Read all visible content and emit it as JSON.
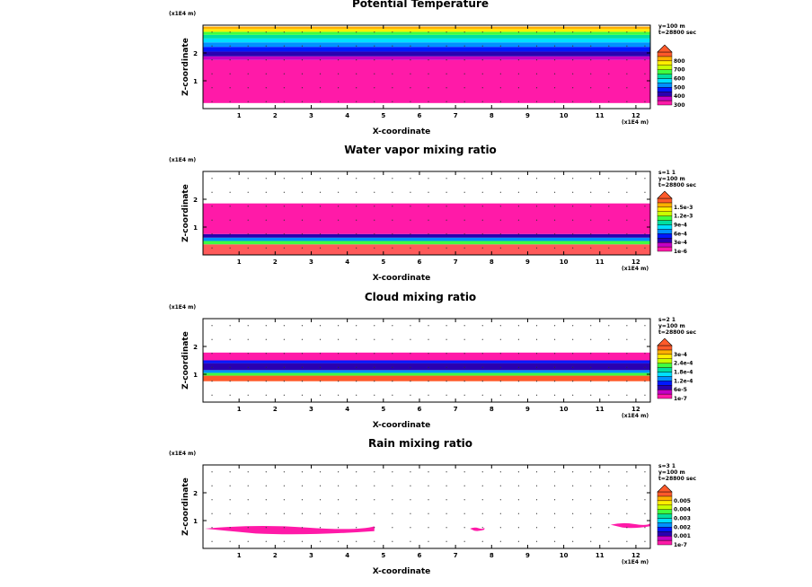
{
  "chart_data": [
    {
      "type": "heatmap",
      "title": "Potential Temperature",
      "xlabel": "X-coordinate",
      "ylabel": "Z-coordinate",
      "x_unit": "(x1E4 m)",
      "y_unit": "(x1E4 m)",
      "xlim": [
        0,
        12.4
      ],
      "ylim": [
        0,
        3.0
      ],
      "x_ticks": [
        "1",
        "2",
        "3",
        "4",
        "5",
        "6",
        "7",
        "8",
        "9",
        "10",
        "11",
        "12"
      ],
      "y_ticks": [
        "1",
        "2"
      ],
      "info": [
        "y=100 m",
        "t=28800 sec"
      ],
      "legend_levels": [
        "300",
        "400",
        "500",
        "600",
        "700",
        "800"
      ],
      "colorbar": [
        "#ff1aa8",
        "#c400c4",
        "#2a00b0",
        "#0018ff",
        "#0090ff",
        "#00e0ff",
        "#00e0a0",
        "#40ff40",
        "#c8ff00",
        "#ffee00",
        "#ffb000",
        "#ff5a2a"
      ],
      "bands": [
        {
          "z0": 0.2,
          "z1": 1.75,
          "color": "#ff1aa8"
        },
        {
          "z0": 1.75,
          "z1": 1.88,
          "color": "#c400c4"
        },
        {
          "z0": 1.88,
          "z1": 2.05,
          "color": "#2a00b0"
        },
        {
          "z0": 2.05,
          "z1": 2.22,
          "color": "#0018ff"
        },
        {
          "z0": 2.22,
          "z1": 2.38,
          "color": "#0090ff"
        },
        {
          "z0": 2.38,
          "z1": 2.52,
          "color": "#00e0ff"
        },
        {
          "z0": 2.52,
          "z1": 2.65,
          "color": "#00e0a0"
        },
        {
          "z0": 2.65,
          "z1": 2.76,
          "color": "#40ff40"
        },
        {
          "z0": 2.76,
          "z1": 2.86,
          "color": "#ffee00"
        },
        {
          "z0": 2.86,
          "z1": 2.95,
          "color": "#ffb000"
        }
      ]
    },
    {
      "type": "heatmap",
      "title": "Water vapor mixing ratio",
      "xlabel": "X-coordinate",
      "ylabel": "Z-coordinate",
      "x_unit": "(x1E4 m)",
      "y_unit": "(x1E4 m)",
      "xlim": [
        0,
        12.4
      ],
      "ylim": [
        0,
        3.0
      ],
      "x_ticks": [
        "1",
        "2",
        "3",
        "4",
        "5",
        "6",
        "7",
        "8",
        "9",
        "10",
        "11",
        "12"
      ],
      "y_ticks": [
        "1",
        "2"
      ],
      "info": [
        "s=1 1",
        "y=100 m",
        "t=28800 sec"
      ],
      "legend_levels": [
        "1e-6",
        "3e-4",
        "6e-4",
        "9e-4",
        "1.2e-3",
        "1.5e-3"
      ],
      "colorbar": [
        "#ff1aa8",
        "#c400c4",
        "#2a00b0",
        "#0018ff",
        "#0090ff",
        "#00e0ff",
        "#00e0a0",
        "#40ff40",
        "#c8ff00",
        "#ffee00",
        "#ffb000",
        "#ff5a2a"
      ],
      "bands": [
        {
          "z0": 0.0,
          "z1": 0.38,
          "color": "#ff5a5a"
        },
        {
          "z0": 0.38,
          "z1": 0.5,
          "color": "#40ff40"
        },
        {
          "z0": 0.5,
          "z1": 0.62,
          "color": "#0090ff"
        },
        {
          "z0": 0.62,
          "z1": 0.75,
          "color": "#2a00b0"
        },
        {
          "z0": 0.75,
          "z1": 1.85,
          "color": "#ff1aa8"
        }
      ]
    },
    {
      "type": "heatmap",
      "title": "Cloud mixing ratio",
      "xlabel": "X-coordinate",
      "ylabel": "Z-coordinate",
      "x_unit": "(x1E4 m)",
      "y_unit": "(x1E4 m)",
      "xlim": [
        0,
        12.4
      ],
      "ylim": [
        0,
        3.0
      ],
      "x_ticks": [
        "1",
        "2",
        "3",
        "4",
        "5",
        "6",
        "7",
        "8",
        "9",
        "10",
        "11",
        "12"
      ],
      "y_ticks": [
        "1",
        "2"
      ],
      "info": [
        "s=2 1",
        "y=100 m",
        "t=28800 sec"
      ],
      "legend_levels": [
        "1e-7",
        "6e-5",
        "1.2e-4",
        "1.8e-4",
        "2.4e-4",
        "3e-4"
      ],
      "colorbar": [
        "#ff1aa8",
        "#c400c4",
        "#2a00b0",
        "#0018ff",
        "#0090ff",
        "#00e0ff",
        "#00e0a0",
        "#40ff40",
        "#c8ff00",
        "#ffee00",
        "#ffb000",
        "#ff5a2a"
      ],
      "bands": [
        {
          "z0": 0.75,
          "z1": 0.95,
          "color": "#ff5a2a"
        },
        {
          "z0": 0.95,
          "z1": 1.05,
          "color": "#40ff40"
        },
        {
          "z0": 1.05,
          "z1": 1.15,
          "color": "#0090ff"
        },
        {
          "z0": 1.15,
          "z1": 1.4,
          "color": "#2a00b0"
        },
        {
          "z0": 1.4,
          "z1": 1.5,
          "color": "#0018ff"
        },
        {
          "z0": 1.5,
          "z1": 1.78,
          "color": "#ff1aa8"
        }
      ]
    },
    {
      "type": "heatmap",
      "title": "Rain mixing ratio",
      "xlabel": "X-coordinate",
      "ylabel": "Z-coordinate",
      "x_unit": "(x1E4 m)",
      "y_unit": "(x1E4 m)",
      "xlim": [
        0,
        12.4
      ],
      "ylim": [
        0,
        3.0
      ],
      "x_ticks": [
        "1",
        "2",
        "3",
        "4",
        "5",
        "6",
        "7",
        "8",
        "9",
        "10",
        "11",
        "12"
      ],
      "y_ticks": [
        "1",
        "2"
      ],
      "info": [
        "s=3 1",
        "y=100 m",
        "t=28800 sec"
      ],
      "legend_levels": [
        "1e-7",
        "0.001",
        "0.002",
        "0.003",
        "0.004",
        "0.005"
      ],
      "colorbar": [
        "#ff1aa8",
        "#c400c4",
        "#2a00b0",
        "#0018ff",
        "#0090ff",
        "#00e0ff",
        "#00e0a0",
        "#40ff40",
        "#c8ff00",
        "#ffee00",
        "#ffb000",
        "#ff5a2a"
      ],
      "patches": [
        {
          "x0": 0.05,
          "x1": 4.75,
          "z0": 0.45,
          "z1": 0.88,
          "color": "#ff1aa8"
        },
        {
          "x0": 7.4,
          "x1": 7.8,
          "z0": 0.6,
          "z1": 0.78,
          "color": "#ff1aa8"
        },
        {
          "x0": 11.3,
          "x1": 12.4,
          "z0": 0.7,
          "z1": 0.95,
          "color": "#ff1aa8"
        }
      ]
    }
  ]
}
